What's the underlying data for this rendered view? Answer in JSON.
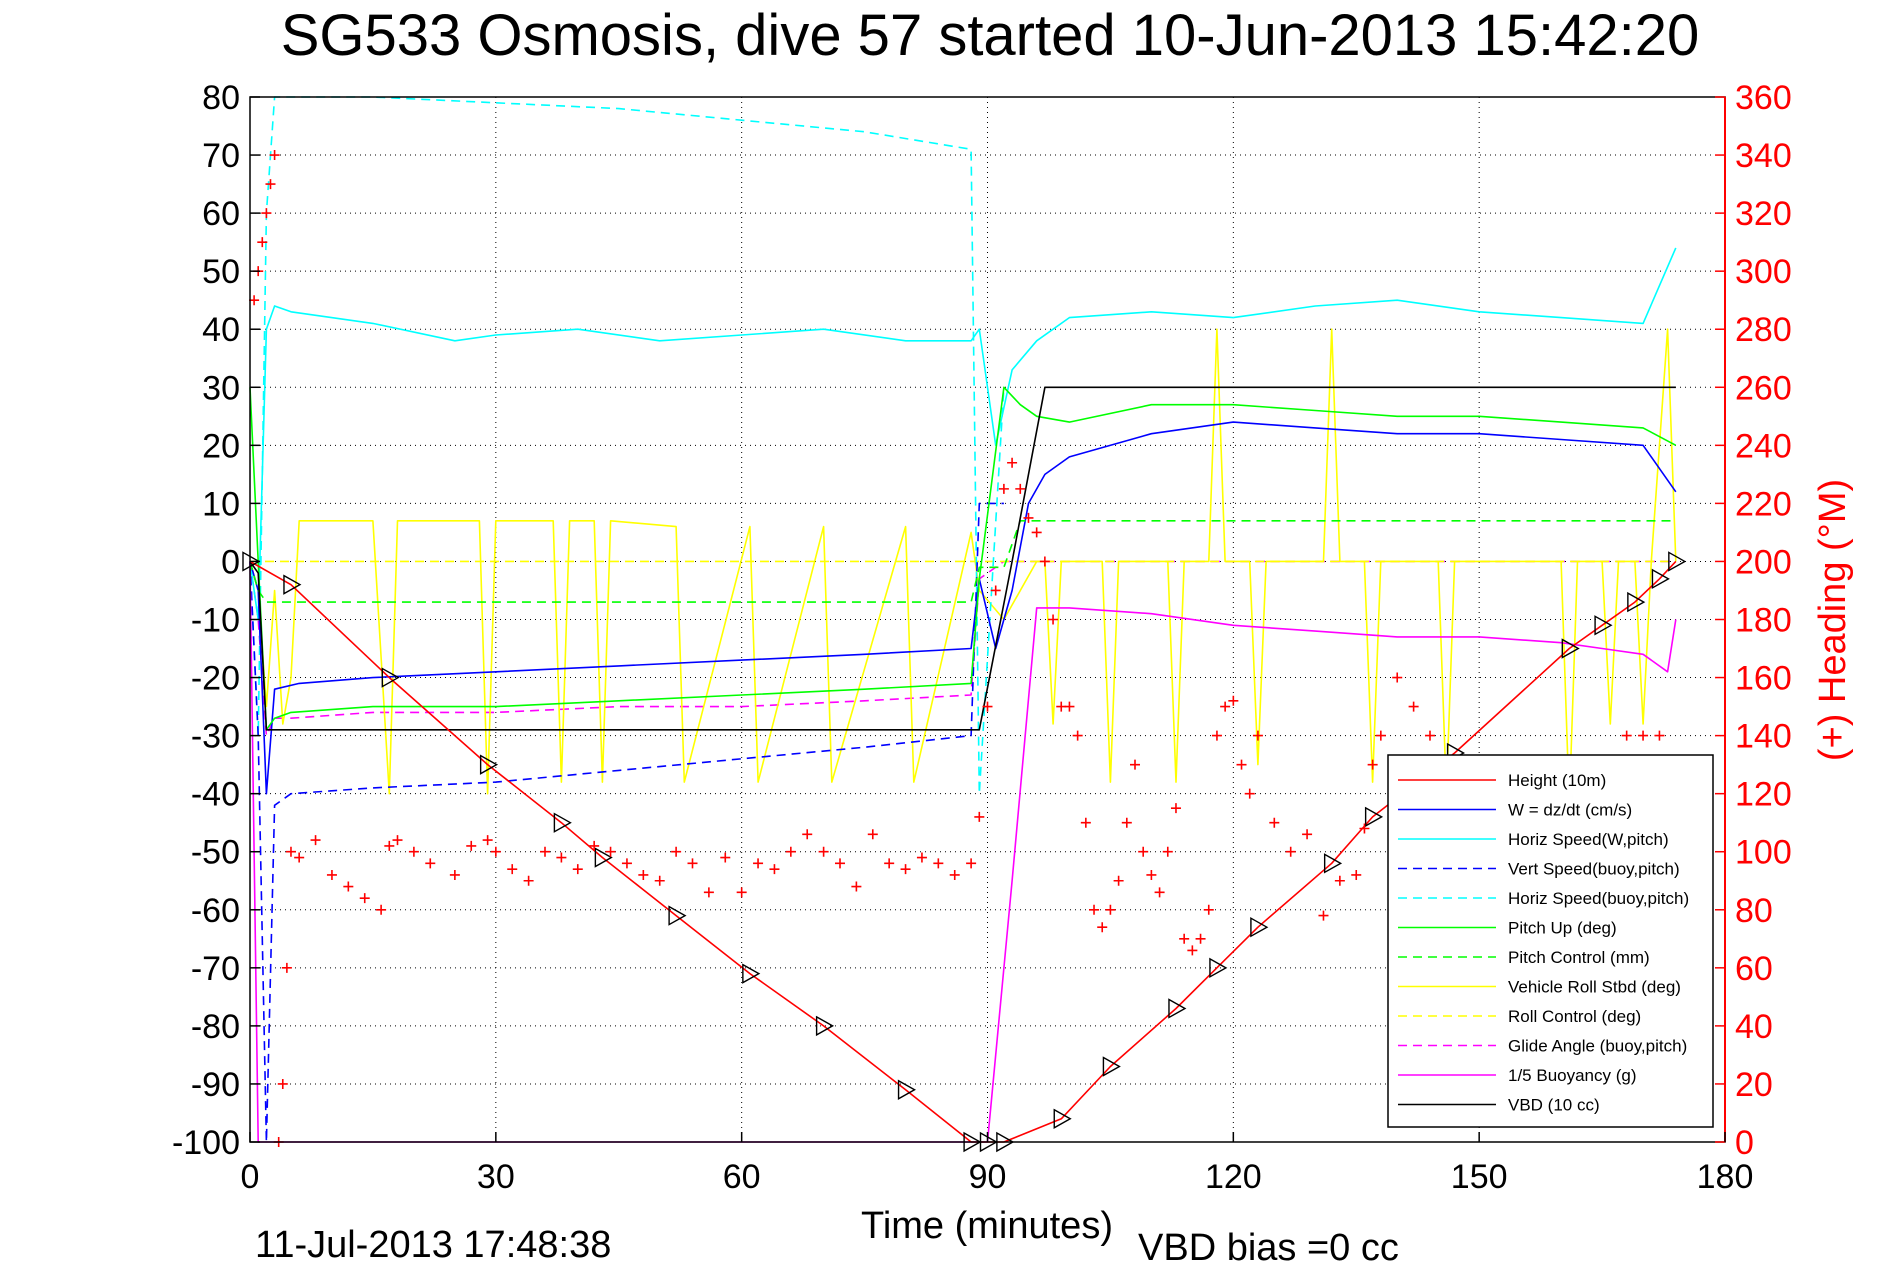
{
  "chart_data": {
    "type": "line",
    "title": "SG533 Osmosis, dive 57 started 10-Jun-2013 15:42:20",
    "xlabel": "Time (minutes)",
    "ylabel_right": "(+) Heading (°M)",
    "xlim": [
      0,
      180
    ],
    "ylim_left": [
      -100,
      80
    ],
    "ylim_right": [
      0,
      360
    ],
    "xticks": [
      0,
      30,
      60,
      90,
      120,
      150,
      180
    ],
    "yticks_left": [
      -100,
      -90,
      -80,
      -70,
      -60,
      -50,
      -40,
      -30,
      -20,
      -10,
      0,
      10,
      20,
      30,
      40,
      50,
      60,
      70,
      80
    ],
    "yticks_right": [
      0,
      20,
      40,
      60,
      80,
      100,
      120,
      140,
      160,
      180,
      200,
      220,
      240,
      260,
      280,
      300,
      320,
      340,
      360
    ],
    "grid": true,
    "legend_position": "bottom-right",
    "footer_left": "11-Jul-2013 17:48:38",
    "footer_right": "VBD bias =0 cc",
    "colors": {
      "red": "#ff0000",
      "blue": "#0000ff",
      "cyan": "#00ffff",
      "green": "#00ff00",
      "yellow": "#ffff00",
      "magenta": "#ff00ff",
      "black": "#000000"
    },
    "series": [
      {
        "name": "Height (10m)",
        "color": "#ff0000",
        "style": "solid",
        "axis": "left",
        "x": [
          0,
          5,
          17,
          29,
          38,
          43,
          52,
          61,
          70,
          80,
          88,
          90,
          92,
          99,
          105,
          113,
          118,
          123,
          132,
          137,
          147,
          161,
          165,
          169,
          172,
          174
        ],
        "y": [
          0,
          -4,
          -20,
          -35,
          -45,
          -51,
          -61,
          -71,
          -80,
          -91,
          -100,
          -100,
          -100,
          -96,
          -87,
          -77,
          -70,
          -63,
          -52,
          -44,
          -33,
          -15,
          -11,
          -7,
          -3,
          0
        ]
      },
      {
        "name": "W = dz/dt (cm/s)",
        "color": "#0000ff",
        "style": "solid",
        "axis": "left",
        "x": [
          0,
          1,
          2,
          3,
          6,
          15,
          30,
          45,
          60,
          75,
          88,
          89,
          91,
          93,
          95,
          97,
          100,
          110,
          120,
          130,
          140,
          150,
          160,
          170,
          174
        ],
        "y": [
          0,
          -5,
          -40,
          -22,
          -21,
          -20,
          -19,
          -18,
          -17,
          -16,
          -15,
          -3,
          -15,
          -5,
          10,
          15,
          18,
          22,
          24,
          23,
          22,
          22,
          21,
          20,
          12
        ]
      },
      {
        "name": "Horiz Speed(W,pitch)",
        "color": "#00ffff",
        "style": "solid",
        "axis": "left",
        "x": [
          0,
          1,
          2,
          3,
          5,
          15,
          25,
          30,
          40,
          50,
          60,
          70,
          80,
          88,
          89,
          91,
          93,
          96,
          100,
          110,
          120,
          130,
          140,
          150,
          160,
          170,
          174
        ],
        "y": [
          0,
          -10,
          40,
          44,
          43,
          41,
          38,
          39,
          40,
          38,
          39,
          40,
          38,
          38,
          40,
          20,
          33,
          38,
          42,
          43,
          42,
          44,
          45,
          43,
          42,
          41,
          54
        ]
      },
      {
        "name": "Vert Speed(buoy,pitch)",
        "color": "#0000ff",
        "style": "dashed",
        "axis": "left",
        "x": [
          0,
          1,
          2,
          3,
          5,
          15,
          30,
          45,
          60,
          75,
          88,
          89,
          92
        ],
        "y": [
          0,
          -30,
          -100,
          -42,
          -40,
          -39,
          -38,
          -36,
          -34,
          -32,
          -30,
          10,
          10
        ]
      },
      {
        "name": "Horiz Speed(buoy,pitch)",
        "color": "#00ffff",
        "style": "dashed",
        "axis": "left",
        "x": [
          0,
          1,
          2,
          3,
          5,
          15,
          30,
          45,
          60,
          75,
          88,
          89,
          92
        ],
        "y": [
          0,
          -30,
          60,
          80,
          80,
          80,
          79,
          78,
          76,
          74,
          71,
          -40,
          30
        ]
      },
      {
        "name": "Pitch Up (deg)",
        "color": "#00ff00",
        "style": "solid",
        "axis": "left",
        "x": [
          0,
          1,
          2,
          3,
          5,
          15,
          30,
          45,
          60,
          75,
          88,
          89,
          92,
          94,
          96,
          100,
          110,
          120,
          130,
          140,
          150,
          160,
          170,
          174
        ],
        "y": [
          30,
          0,
          -29,
          -27,
          -26,
          -25,
          -25,
          -24,
          -23,
          -22,
          -21,
          -3,
          30,
          27,
          25,
          24,
          27,
          27,
          26,
          25,
          25,
          24,
          23,
          20
        ]
      },
      {
        "name": "Pitch Control (mm)",
        "color": "#00ff00",
        "style": "dashed",
        "axis": "left",
        "x": [
          0,
          1,
          2,
          88,
          89,
          92,
          94,
          174
        ],
        "y": [
          0,
          -5,
          -7,
          -7,
          -1,
          -1,
          7,
          7
        ]
      },
      {
        "name": "Vehicle Roll Stbd (deg)",
        "color": "#ffff00",
        "style": "solid",
        "axis": "left",
        "x": [
          0,
          1,
          2,
          3,
          4,
          5,
          6,
          15,
          17,
          18,
          28,
          29,
          30,
          37,
          38,
          39,
          42,
          43,
          44,
          52,
          53,
          61,
          62,
          70,
          71,
          80,
          81,
          88,
          89,
          92,
          96,
          97,
          98,
          99,
          100,
          104,
          105,
          106,
          112,
          113,
          114,
          117,
          118,
          119,
          122,
          123,
          124,
          131,
          132,
          133,
          136,
          137,
          138,
          145,
          146,
          147,
          160,
          161,
          162,
          165,
          166,
          167,
          169,
          170,
          171,
          173,
          174
        ],
        "y": [
          0,
          -5,
          -25,
          -5,
          -28,
          -20,
          7,
          7,
          -40,
          7,
          7,
          -40,
          7,
          7,
          -38,
          7,
          7,
          -38,
          7,
          6,
          -38,
          6,
          -38,
          6,
          -38,
          6,
          -38,
          5,
          -5,
          -10,
          0,
          0,
          -28,
          0,
          0,
          0,
          -38,
          0,
          0,
          -38,
          0,
          0,
          40,
          0,
          0,
          -35,
          0,
          0,
          40,
          0,
          0,
          -38,
          0,
          0,
          -40,
          0,
          0,
          -42,
          0,
          0,
          -28,
          0,
          0,
          -28,
          0,
          40,
          0
        ]
      },
      {
        "name": "Roll Control (deg)",
        "color": "#ffff00",
        "style": "dashed",
        "axis": "left",
        "x": [
          0,
          88,
          89,
          174
        ],
        "y": [
          0,
          0,
          0,
          0
        ]
      },
      {
        "name": "Glide Angle (buoy,pitch)",
        "color": "#ff00ff",
        "style": "dashed",
        "axis": "left",
        "x": [
          0,
          1,
          2,
          3,
          5,
          15,
          30,
          45,
          60,
          75,
          88,
          89,
          92,
          95,
          174
        ],
        "y": [
          0,
          -10,
          -30,
          -27,
          -27,
          -26,
          -26,
          -25,
          -25,
          -24,
          -23,
          -3,
          0,
          0,
          0
        ]
      },
      {
        "name": "1/5 Buoyancy (g)",
        "color": "#ff00ff",
        "style": "solid",
        "axis": "left",
        "x": [
          0,
          1,
          88,
          90,
          93,
          96,
          100,
          110,
          120,
          130,
          140,
          150,
          160,
          165,
          170,
          173,
          174
        ],
        "y": [
          0,
          -100,
          -100,
          -100,
          -55,
          -8,
          -8,
          -9,
          -11,
          -12,
          -13,
          -13,
          -14,
          -15,
          -16,
          -19,
          -10
        ]
      },
      {
        "name": "VBD (10 cc)",
        "color": "#000000",
        "style": "solid",
        "axis": "left",
        "x": [
          0,
          1,
          2,
          88,
          89,
          93,
          97,
          174
        ],
        "y": [
          0,
          -2,
          -29,
          -29,
          -29,
          0,
          30,
          30
        ]
      },
      {
        "name": "Heading",
        "color": "#ff0000",
        "style": "markers",
        "marker": "+",
        "axis": "right",
        "x": [
          0.5,
          1,
          1.5,
          2,
          2.5,
          3,
          3.5,
          4,
          4.5,
          5,
          6,
          8,
          10,
          12,
          14,
          16,
          17,
          18,
          20,
          22,
          25,
          27,
          29,
          30,
          32,
          34,
          36,
          38,
          40,
          42,
          44,
          46,
          48,
          50,
          52,
          54,
          56,
          58,
          60,
          62,
          64,
          66,
          68,
          70,
          72,
          74,
          76,
          78,
          80,
          82,
          84,
          86,
          88,
          89,
          90,
          91,
          92,
          93,
          94,
          95,
          96,
          97,
          98,
          99,
          100,
          101,
          102,
          103,
          104,
          105,
          106,
          107,
          108,
          109,
          110,
          111,
          112,
          113,
          114,
          115,
          116,
          117,
          118,
          119,
          120,
          121,
          122,
          123,
          125,
          127,
          129,
          131,
          133,
          135,
          136,
          137,
          138,
          140,
          142,
          144,
          146,
          147,
          150,
          153,
          156,
          160,
          165,
          168,
          170,
          172
        ],
        "y": [
          290,
          300,
          310,
          320,
          330,
          340,
          0,
          20,
          60,
          100,
          98,
          104,
          92,
          88,
          84,
          80,
          102,
          104,
          100,
          96,
          92,
          102,
          104,
          100,
          94,
          90,
          100,
          98,
          94,
          102,
          100,
          96,
          92,
          90,
          100,
          96,
          86,
          98,
          86,
          96,
          94,
          100,
          106,
          100,
          96,
          88,
          106,
          96,
          94,
          98,
          96,
          92,
          96,
          112,
          150,
          190,
          225,
          234,
          225,
          215,
          210,
          200,
          180,
          150,
          150,
          140,
          110,
          80,
          74,
          80,
          90,
          110,
          130,
          100,
          92,
          86,
          100,
          115,
          70,
          66,
          70,
          80,
          140,
          150,
          152,
          130,
          120,
          140,
          110,
          100,
          106,
          78,
          90,
          92,
          108,
          130,
          140,
          160,
          150,
          140,
          126,
          100,
          96,
          88,
          104,
          120,
          130,
          140,
          140,
          140
        ]
      }
    ]
  }
}
